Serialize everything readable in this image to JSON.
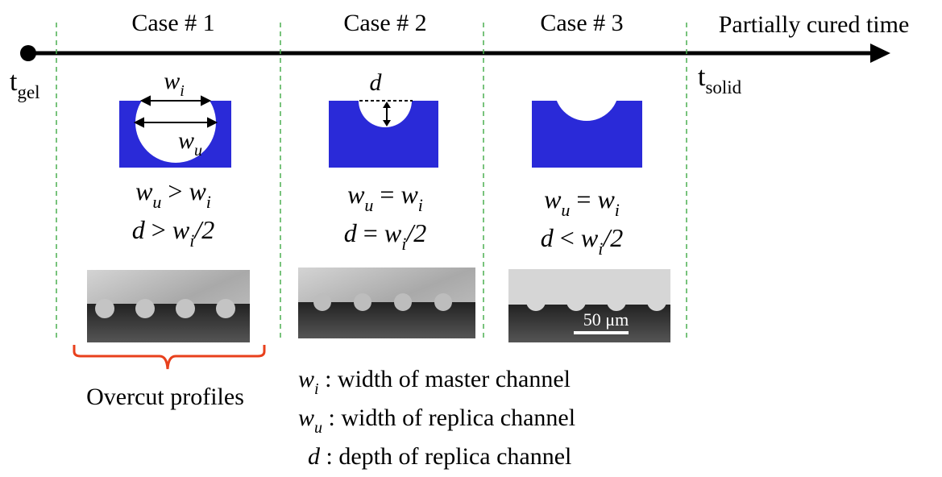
{
  "timeline": {
    "start": [
      {
        "text": "t",
        "sub": "gel"
      }
    ],
    "end": [
      {
        "text": "t",
        "sub": "solid"
      }
    ],
    "axis_label": "Partially cured time"
  },
  "cases": [
    {
      "title": "Case # 1",
      "shape_labels": [
        [
          {
            "var": "w",
            "sub": "i"
          }
        ],
        [
          {
            "var": "w",
            "sub": "u"
          }
        ]
      ],
      "conditions": [
        [
          {
            "var": "w",
            "sub": "u"
          },
          {
            "text": " > "
          },
          {
            "var": "w",
            "sub": "i"
          }
        ],
        [
          {
            "var": "d"
          },
          {
            "text": " > "
          },
          {
            "var": "w",
            "sub": "i"
          },
          {
            "var": "/2"
          }
        ]
      ]
    },
    {
      "title": "Case # 2",
      "shape_labels": [
        [
          {
            "var": "d"
          }
        ]
      ],
      "conditions": [
        [
          {
            "var": "w",
            "sub": "u"
          },
          {
            "text": " = "
          },
          {
            "var": "w",
            "sub": "i"
          }
        ],
        [
          {
            "var": "d"
          },
          {
            "text": " = "
          },
          {
            "var": "w",
            "sub": "i"
          },
          {
            "var": "/2"
          }
        ]
      ]
    },
    {
      "title": "Case # 3",
      "shape_labels": [],
      "conditions": [
        [
          {
            "var": "w",
            "sub": "u"
          },
          {
            "text": " = "
          },
          {
            "var": "w",
            "sub": "i"
          }
        ],
        [
          {
            "var": "d"
          },
          {
            "text": " < "
          },
          {
            "var": "w",
            "sub": "i"
          },
          {
            "var": "/2"
          }
        ]
      ]
    }
  ],
  "scale_bar": "50 μm",
  "overcut_label": "Overcut profiles",
  "legend": [
    [
      {
        "var": "w",
        "sub": "i"
      },
      {
        "text": " : width of master channel"
      }
    ],
    [
      {
        "var": "w",
        "sub": "u"
      },
      {
        "text": " : width of replica channel"
      }
    ],
    [
      {
        "var": "d"
      },
      {
        "text": " : depth of replica channel"
      }
    ]
  ]
}
